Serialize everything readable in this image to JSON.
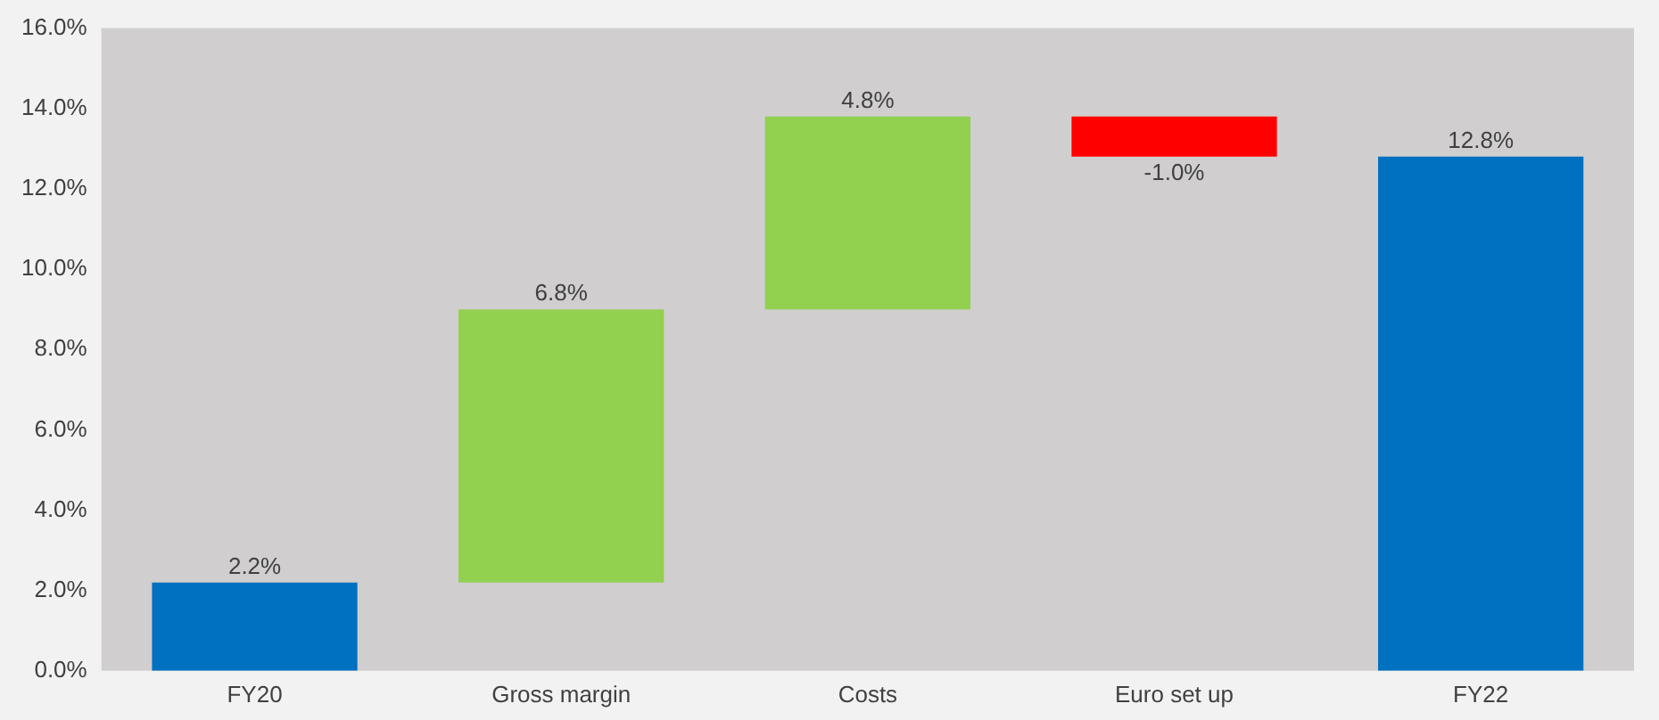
{
  "chart_data": {
    "type": "bar",
    "categories": [
      "FY20",
      "Gross margin",
      "Costs",
      "Euro set up",
      "FY22"
    ],
    "values": [
      2.2,
      6.8,
      4.8,
      -1.0,
      12.8
    ],
    "base": [
      0,
      2.2,
      9.0,
      13.8,
      0
    ],
    "colors": [
      "#0070c0",
      "#92d050",
      "#92d050",
      "#ff0000",
      "#0070c0"
    ],
    "value_labels": [
      "2.2%",
      "6.8%",
      "4.8%",
      "-1.0%",
      "12.8%"
    ],
    "ylim": [
      0,
      16
    ],
    "yticks": [
      {
        "value": 0,
        "label": "0.0%"
      },
      {
        "value": 2,
        "label": "2.0%"
      },
      {
        "value": 4,
        "label": "4.0%"
      },
      {
        "value": 6,
        "label": "6.0%"
      },
      {
        "value": 8,
        "label": "8.0%"
      },
      {
        "value": 10,
        "label": "10.0%"
      },
      {
        "value": 12,
        "label": "12.0%"
      },
      {
        "value": 14,
        "label": "14.0%"
      },
      {
        "value": 16,
        "label": "16.0%"
      }
    ],
    "grid": false,
    "legend": false
  }
}
